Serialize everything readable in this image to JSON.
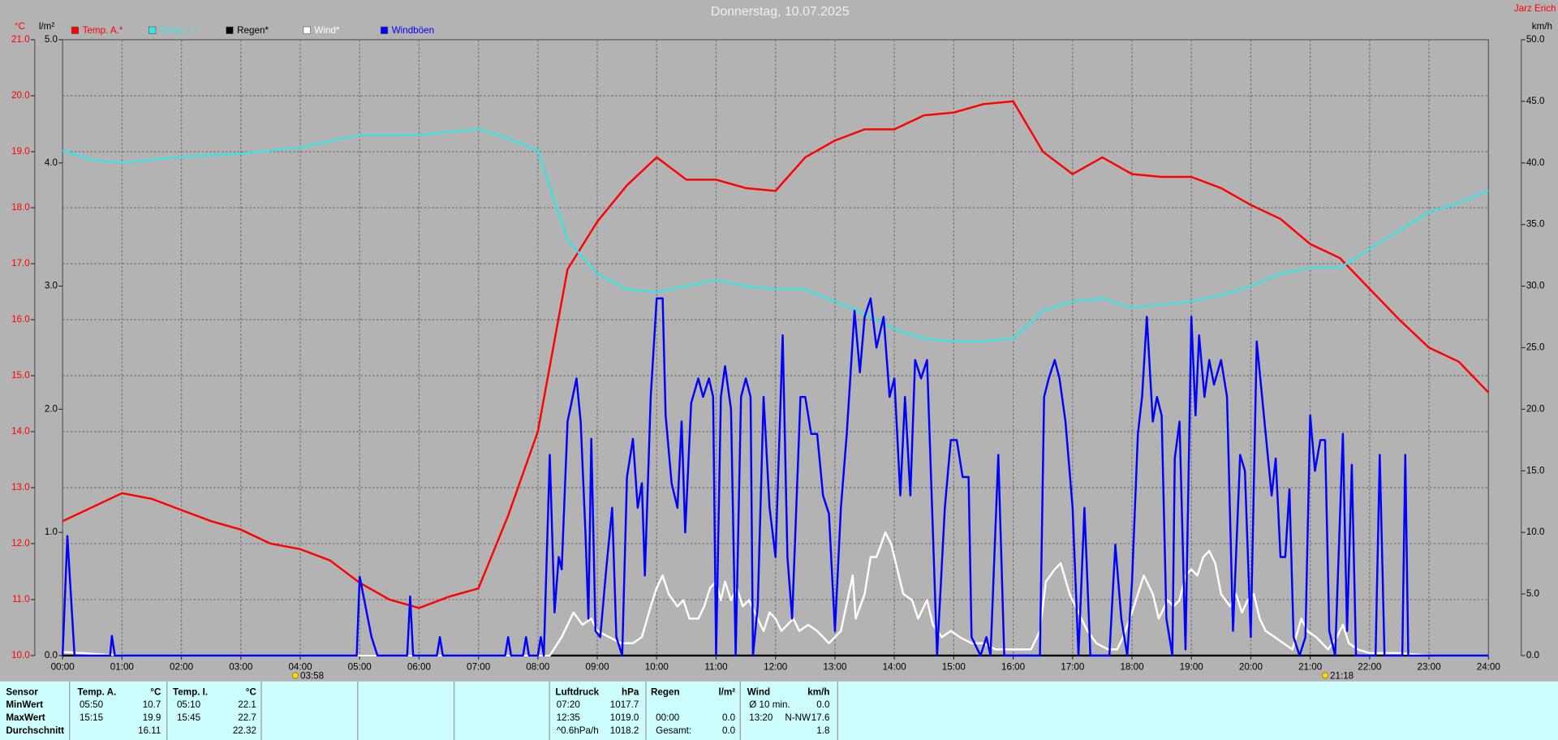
{
  "chart_data": {
    "type": "line",
    "title": "Donnerstag, 10.07.2025",
    "author": "Jarz Erich",
    "y_unit": "°C",
    "y2_unit": "l/m²",
    "y4_unit": "km/h",
    "xlim": [
      0,
      24
    ],
    "xticks": [
      {
        "value": 0,
        "label": "00:00"
      },
      {
        "value": 1,
        "label": "01:00"
      },
      {
        "value": 2,
        "label": "02:00"
      },
      {
        "value": 3,
        "label": "03:00"
      },
      {
        "value": 4,
        "label": "04:00"
      },
      {
        "value": 5,
        "label": "05:00"
      },
      {
        "value": 6,
        "label": "06:00"
      },
      {
        "value": 7,
        "label": "07:00"
      },
      {
        "value": 8,
        "label": "08:00"
      },
      {
        "value": 9,
        "label": "09:00"
      },
      {
        "value": 10,
        "label": "10:00"
      },
      {
        "value": 11,
        "label": "11:00"
      },
      {
        "value": 12,
        "label": "12:00"
      },
      {
        "value": 13,
        "label": "13:00"
      },
      {
        "value": 14,
        "label": "14:00"
      },
      {
        "value": 15,
        "label": "15:00"
      },
      {
        "value": 16,
        "label": "16:00"
      },
      {
        "value": 17,
        "label": "17:00"
      },
      {
        "value": 18,
        "label": "18:00"
      },
      {
        "value": 19,
        "label": "19:00"
      },
      {
        "value": 20,
        "label": "20:00"
      },
      {
        "value": 21,
        "label": "21:00"
      },
      {
        "value": 22,
        "label": "22:00"
      },
      {
        "value": 23,
        "label": "23:00"
      },
      {
        "value": 24,
        "label": "24:00"
      }
    ],
    "ylim": [
      10,
      21
    ],
    "yticks": [
      {
        "value": 10,
        "label": "10.0"
      },
      {
        "value": 11,
        "label": "11.0"
      },
      {
        "value": 12,
        "label": "12.0"
      },
      {
        "value": 13,
        "label": "13.0"
      },
      {
        "value": 14,
        "label": "14.0"
      },
      {
        "value": 15,
        "label": "15.0"
      },
      {
        "value": 16,
        "label": "16.0"
      },
      {
        "value": 17,
        "label": "17.0"
      },
      {
        "value": 18,
        "label": "18.0"
      },
      {
        "value": 19,
        "label": "19.0"
      },
      {
        "value": 20,
        "label": "20.0"
      },
      {
        "value": 21,
        "label": "21.0"
      }
    ],
    "y2lim": [
      0,
      5
    ],
    "y2ticks": [
      {
        "value": 0,
        "label": "0.0"
      },
      {
        "value": 1,
        "label": "1.0"
      },
      {
        "value": 2,
        "label": "2.0"
      },
      {
        "value": 3,
        "label": "3.0"
      },
      {
        "value": 4,
        "label": "4.0"
      },
      {
        "value": 5,
        "label": "5.0"
      }
    ],
    "y3lim": [
      21,
      23
    ],
    "y4lim": [
      0,
      50
    ],
    "y4ticks": [
      {
        "value": 0,
        "label": "0.0"
      },
      {
        "value": 5,
        "label": "5.0"
      },
      {
        "value": 10,
        "label": "10.0"
      },
      {
        "value": 15,
        "label": "15.0"
      },
      {
        "value": 20,
        "label": "20.0"
      },
      {
        "value": 25,
        "label": "25.0"
      },
      {
        "value": 30,
        "label": "30.0"
      },
      {
        "value": 35,
        "label": "35.0"
      },
      {
        "value": 40,
        "label": "40.0"
      },
      {
        "value": 45,
        "label": "45.0"
      },
      {
        "value": 50,
        "label": "50.0"
      }
    ],
    "grid": true,
    "sunrise": "03:58",
    "sunset": "21:18",
    "series": [
      {
        "name": "Temp. A.*",
        "color": "#ff0000",
        "axis": "y",
        "x": [
          0,
          0.5,
          1,
          1.5,
          2,
          2.5,
          3,
          3.5,
          4,
          4.5,
          5,
          5.5,
          6,
          6.5,
          7,
          7.5,
          8,
          8.5,
          9,
          9.5,
          10,
          10.5,
          11,
          11.5,
          12,
          12.5,
          13,
          13.5,
          14,
          14.5,
          15,
          15.5,
          16,
          16.5,
          17,
          17.5,
          18,
          18.5,
          19,
          19.5,
          20,
          20.5,
          21,
          21.5,
          22,
          22.5,
          23,
          23.5,
          24
        ],
        "values": [
          12.4,
          12.65,
          12.9,
          12.8,
          12.6,
          12.4,
          12.25,
          12.0,
          11.9,
          11.7,
          11.3,
          11.0,
          10.85,
          11.05,
          11.2,
          12.5,
          14.0,
          16.9,
          17.75,
          18.4,
          18.9,
          18.5,
          18.5,
          18.35,
          18.3,
          18.9,
          19.2,
          19.4,
          19.4,
          19.65,
          19.7,
          19.85,
          19.9,
          19.0,
          18.6,
          18.9,
          18.6,
          18.55,
          18.55,
          18.35,
          18.05,
          17.8,
          17.35,
          17.1,
          16.55,
          16.0,
          15.5,
          15.25,
          14.7
        ]
      },
      {
        "name": "Temp. I.*",
        "color": "#3ee0e0",
        "axis": "y3",
        "x": [
          0,
          0.5,
          1,
          2,
          3,
          4,
          5,
          6,
          7,
          7.5,
          8,
          8.5,
          9,
          9.5,
          10,
          10.5,
          11,
          11.5,
          12,
          12.5,
          13,
          13.5,
          14,
          14.5,
          15,
          15.5,
          16,
          16.5,
          17,
          17.5,
          18,
          18.5,
          19,
          19.5,
          20,
          20.5,
          21,
          21.5,
          22,
          22.5,
          23,
          23.5,
          24
        ],
        "values": [
          22.64,
          22.61,
          22.6,
          22.62,
          22.63,
          22.65,
          22.69,
          22.69,
          22.71,
          22.68,
          22.64,
          22.35,
          22.24,
          22.19,
          22.18,
          22.2,
          22.22,
          22.2,
          22.19,
          22.19,
          22.15,
          22.11,
          22.06,
          22.03,
          22.02,
          22.02,
          22.03,
          22.12,
          22.15,
          22.16,
          22.13,
          22.14,
          22.15,
          22.17,
          22.2,
          22.24,
          22.26,
          22.26,
          22.32,
          22.38,
          22.44,
          22.47,
          22.51
        ]
      },
      {
        "name": "Regen*",
        "color": "#000000",
        "axis": "y2",
        "x": [
          0,
          24
        ],
        "values": [
          0,
          0
        ]
      },
      {
        "name": "Wind*",
        "color": "#ffffff",
        "axis": "y4",
        "x": [
          0,
          0.3,
          1,
          8.2,
          8.4,
          8.6,
          8.75,
          8.9,
          9.0,
          9.2,
          9.4,
          9.6,
          9.75,
          9.9,
          10.0,
          10.1,
          10.2,
          10.35,
          10.45,
          10.55,
          10.7,
          10.8,
          10.9,
          11.0,
          11.08,
          11.15,
          11.25,
          11.35,
          11.45,
          11.55,
          11.65,
          11.8,
          11.9,
          12.0,
          12.1,
          12.3,
          12.4,
          12.55,
          12.7,
          12.9,
          13.0,
          13.1,
          13.3,
          13.35,
          13.5,
          13.6,
          13.7,
          13.85,
          13.95,
          14.05,
          14.15,
          14.3,
          14.4,
          14.55,
          14.65,
          14.8,
          14.95,
          15.1,
          15.3,
          15.5,
          15.7,
          16.0,
          16.3,
          16.45,
          16.55,
          16.7,
          16.8,
          16.95,
          17.1,
          17.25,
          17.4,
          17.6,
          17.75,
          17.85,
          18.0,
          18.1,
          18.2,
          18.35,
          18.45,
          18.6,
          18.7,
          18.8,
          18.9,
          19.0,
          19.1,
          19.2,
          19.3,
          19.4,
          19.5,
          19.65,
          19.75,
          19.85,
          19.95,
          20.05,
          20.15,
          20.25,
          20.4,
          20.55,
          20.7,
          20.85,
          20.95,
          21.1,
          21.3,
          21.45,
          21.55,
          21.65,
          21.8,
          22.0,
          22.5,
          23.0,
          24
        ],
        "values": [
          0.3,
          0.2,
          0,
          0,
          1.5,
          3.5,
          2.5,
          3,
          2,
          1.5,
          1,
          1,
          1.5,
          4,
          5.5,
          6.5,
          5,
          4,
          4.5,
          3,
          3,
          4,
          5.5,
          6,
          4.5,
          6,
          4.5,
          5.5,
          4,
          4.5,
          3.5,
          2,
          3.5,
          3,
          2,
          3,
          2,
          2.5,
          2,
          1,
          1.5,
          2,
          6.5,
          3,
          5,
          8,
          8,
          10,
          9,
          7,
          5,
          4.5,
          3,
          4.5,
          2.5,
          1.5,
          2,
          1.5,
          1,
          1,
          0.5,
          0.5,
          0.5,
          2,
          6,
          7,
          7.5,
          5,
          3.5,
          2,
          1,
          0.5,
          0.5,
          1.5,
          3.5,
          5,
          6.5,
          5,
          3,
          4.5,
          4,
          4.5,
          6.5,
          7,
          6.5,
          8,
          8.5,
          7.5,
          5,
          4,
          5,
          3.5,
          4.5,
          5,
          3,
          2,
          1.5,
          1,
          0.5,
          3,
          2,
          1.5,
          0.5,
          1.5,
          2.5,
          1,
          0.5,
          0.2,
          0.2,
          0,
          0
        ]
      },
      {
        "name": "Windböen",
        "color": "#0000ff",
        "axis": "y4",
        "x": [
          0,
          0.08,
          0.2,
          0.8,
          0.83,
          0.88,
          4.95,
          5.0,
          5.2,
          5.3,
          5.8,
          5.85,
          5.9,
          6.3,
          6.35,
          6.4,
          7.45,
          7.5,
          7.55,
          7.75,
          7.8,
          7.85,
          8.0,
          8.05,
          8.1,
          8.2,
          8.28,
          8.35,
          8.4,
          8.5,
          8.65,
          8.72,
          8.8,
          8.85,
          8.9,
          8.97,
          9.05,
          9.15,
          9.25,
          9.32,
          9.42,
          9.5,
          9.6,
          9.68,
          9.75,
          9.8,
          9.9,
          10.0,
          10.1,
          10.15,
          10.25,
          10.35,
          10.42,
          10.48,
          10.58,
          10.7,
          10.78,
          10.88,
          10.95,
          11.0,
          11.08,
          11.15,
          11.25,
          11.33,
          11.42,
          11.5,
          11.58,
          11.62,
          11.7,
          11.8,
          11.9,
          12.0,
          12.12,
          12.2,
          12.28,
          12.42,
          12.5,
          12.6,
          12.7,
          12.8,
          12.9,
          13.0,
          13.1,
          13.2,
          13.33,
          13.42,
          13.5,
          13.6,
          13.7,
          13.82,
          13.92,
          14.0,
          14.1,
          14.18,
          14.27,
          14.35,
          14.45,
          14.55,
          14.65,
          14.72,
          14.85,
          14.95,
          15.05,
          15.15,
          15.25,
          15.3,
          15.45,
          15.55,
          15.62,
          15.75,
          15.85,
          16.45,
          16.52,
          16.6,
          16.7,
          16.78,
          16.88,
          17.0,
          17.1,
          17.2,
          17.3,
          17.62,
          17.72,
          17.82,
          17.92,
          18.0,
          18.1,
          18.17,
          18.25,
          18.35,
          18.42,
          18.5,
          18.58,
          18.68,
          18.72,
          18.8,
          18.9,
          19.0,
          19.07,
          19.13,
          19.22,
          19.3,
          19.38,
          19.5,
          19.6,
          19.7,
          19.82,
          19.9,
          20.0,
          20.1,
          20.2,
          20.35,
          20.42,
          20.5,
          20.58,
          20.65,
          20.72,
          20.82,
          20.92,
          21.0,
          21.08,
          21.17,
          21.25,
          21.32,
          21.42,
          21.55,
          21.62,
          21.7,
          21.77,
          22.1,
          22.17,
          22.25,
          22.55,
          22.6,
          22.65,
          24
        ],
        "values": [
          0,
          9.7,
          0,
          0,
          1.6,
          0,
          0,
          6.4,
          1.5,
          0,
          0,
          4.8,
          0,
          0,
          1.5,
          0,
          0,
          1.5,
          0,
          0,
          1.5,
          0,
          0,
          1.5,
          0,
          16.3,
          3.5,
          8,
          7,
          19,
          22.5,
          19,
          10,
          3,
          17.6,
          2,
          1.5,
          7,
          12,
          1.5,
          0,
          14.5,
          17.6,
          12,
          14,
          6.5,
          21,
          29,
          29,
          19.5,
          14,
          12,
          19,
          10,
          20.5,
          22.5,
          21,
          22.5,
          21,
          0,
          21,
          23.5,
          20,
          0,
          21,
          22.5,
          21,
          0,
          4,
          21,
          12,
          8,
          26,
          8,
          3,
          21,
          21,
          18,
          18,
          13,
          11.5,
          2,
          12,
          18,
          28,
          23,
          27.5,
          29,
          25,
          27.5,
          21,
          22.5,
          13,
          21,
          13,
          24,
          22.5,
          24,
          10,
          0,
          12,
          17.5,
          17.5,
          14.5,
          14.5,
          1.5,
          0,
          1.5,
          0,
          16.3,
          0,
          0,
          21,
          22.5,
          24,
          22.5,
          19,
          12,
          0,
          12,
          0,
          0,
          9,
          3,
          0,
          6,
          18,
          21,
          27.5,
          19,
          21,
          19.5,
          3,
          0,
          16,
          19,
          0.5,
          27.5,
          19.5,
          26,
          21,
          24,
          22,
          24,
          21,
          2,
          16.3,
          15,
          1.5,
          25.5,
          20.5,
          13,
          16,
          8,
          8,
          13.5,
          1.5,
          0,
          1.5,
          19.5,
          15,
          17.5,
          17.5,
          2,
          0,
          18,
          2,
          15.5,
          0,
          0,
          16.3,
          0,
          0,
          16.3,
          0,
          0
        ]
      }
    ]
  },
  "stats": {
    "headers": [
      "Sensor",
      "Temp. A.",
      "°C",
      "Temp. I.",
      "°C",
      "Luftdruck",
      "hPa",
      "Regen",
      "l/m²",
      "Wind",
      "km/h"
    ],
    "rows": [
      {
        "label": "MinWert",
        "cells": [
          "05:50",
          "10.7",
          "05:10",
          "22.1",
          "07:20",
          "1017.7",
          null,
          null,
          "Ø 10 min.",
          null,
          "0.0"
        ]
      },
      {
        "label": "MaxWert",
        "cells": [
          "15:15",
          "19.9",
          "15:45",
          "22.7",
          "12:35",
          "1019.0",
          "00:00",
          "0.0",
          "13:20",
          "N-NW",
          "17.6"
        ]
      },
      {
        "label": "Durchschnitt",
        "cells": [
          null,
          "16.11",
          null,
          "22.32",
          "^0.6hPa/h",
          "1018.2",
          "Gesamt:",
          "0.0",
          null,
          null,
          "1.8"
        ]
      }
    ]
  }
}
